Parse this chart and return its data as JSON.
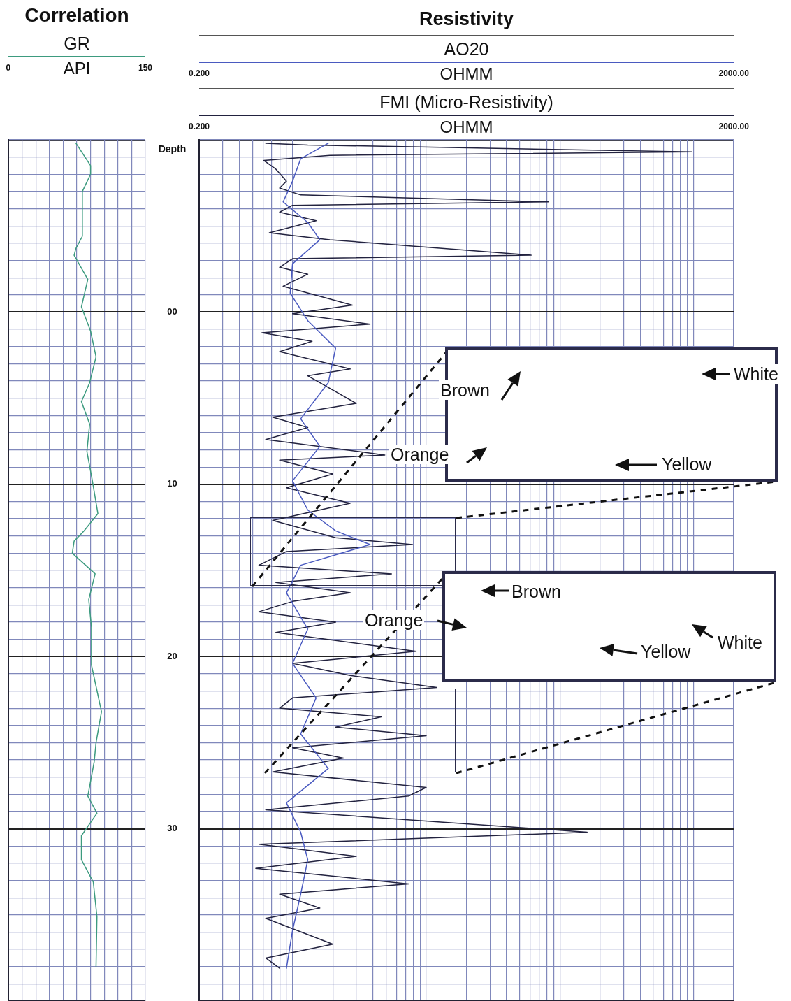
{
  "chart_data": [
    {
      "type": "line",
      "title": "Correlation",
      "xlabel": "API",
      "legend": "top",
      "grid": true,
      "tick_labels": "x",
      "xlim": [
        0,
        150
      ],
      "xticks": [
        0,
        {
          "value": 15,
          "label": null
        },
        {
          "value": 30,
          "label": null
        },
        {
          "value": 45,
          "label": null
        },
        {
          "value": 60,
          "label": null
        },
        {
          "value": 75,
          "label": null
        },
        {
          "value": 90,
          "label": null
        },
        {
          "value": 105,
          "label": null
        },
        {
          "value": 120,
          "label": null
        },
        {
          "value": 135,
          "label": null
        },
        150
      ],
      "ylim": [
        40,
        -10
      ],
      "yticks": [
        {
          "value": -10,
          "label": null
        },
        {
          "value": -9,
          "label": null
        },
        {
          "value": -8,
          "label": null
        },
        {
          "value": -7,
          "label": null
        },
        {
          "value": -6,
          "label": null
        },
        {
          "value": -5,
          "label": null
        },
        {
          "value": -4,
          "label": null
        },
        {
          "value": -3,
          "label": null
        },
        {
          "value": -2,
          "label": null
        },
        {
          "value": -1,
          "label": null
        },
        0,
        {
          "value": 1,
          "label": null
        },
        {
          "value": 2,
          "label": null
        },
        {
          "value": 3,
          "label": null
        },
        {
          "value": 4,
          "label": null
        },
        {
          "value": 5,
          "label": null
        },
        {
          "value": 6,
          "label": null
        },
        {
          "value": 7,
          "label": null
        },
        {
          "value": 8,
          "label": null
        },
        {
          "value": 9,
          "label": null
        },
        10,
        {
          "value": 11,
          "label": null
        },
        {
          "value": 12,
          "label": null
        },
        {
          "value": 13,
          "label": null
        },
        {
          "value": 14,
          "label": null
        },
        {
          "value": 15,
          "label": null
        },
        {
          "value": 16,
          "label": null
        },
        {
          "value": 17,
          "label": null
        },
        {
          "value": 18,
          "label": null
        },
        {
          "value": 19,
          "label": null
        },
        20,
        {
          "value": 21,
          "label": null
        },
        {
          "value": 22,
          "label": null
        },
        {
          "value": 23,
          "label": null
        },
        {
          "value": 24,
          "label": null
        },
        {
          "value": 25,
          "label": null
        },
        {
          "value": 26,
          "label": null
        },
        {
          "value": 27,
          "label": null
        },
        {
          "value": 28,
          "label": null
        },
        {
          "value": 29,
          "label": null
        },
        30,
        {
          "value": 31,
          "label": null
        },
        {
          "value": 32,
          "label": null
        },
        {
          "value": 33,
          "label": null
        },
        {
          "value": 34,
          "label": null
        },
        {
          "value": 35,
          "label": null
        },
        {
          "value": 36,
          "label": null
        },
        {
          "value": 37,
          "label": null
        },
        {
          "value": 38,
          "label": null
        },
        {
          "value": 39,
          "label": null
        },
        {
          "value": 40,
          "label": null
        }
      ],
      "series": [
        {
          "name": "GR",
          "color": "#3d9b7f",
          "x": [
            74,
            90,
            90,
            81,
            81,
            74,
            72,
            87,
            80,
            90,
            96,
            89,
            80,
            89,
            86,
            92,
            98,
            83,
            72,
            70,
            95,
            88,
            91,
            91,
            102,
            96,
            94,
            87,
            97,
            80,
            80,
            93,
            97,
            96
          ],
          "values": [
            -9.8,
            -8.5,
            -8.0,
            -7.0,
            -4.4,
            -3.7,
            -3.3,
            -1.9,
            -0.3,
            1.1,
            2.6,
            4.1,
            5.2,
            6.5,
            8.1,
            9.8,
            11.7,
            12.7,
            13.3,
            14.0,
            15.2,
            16.7,
            18.3,
            20.5,
            23.2,
            25,
            26.1,
            28.1,
            29.1,
            30.4,
            31.8,
            33.1,
            35.1,
            38.0
          ]
        }
      ]
    },
    {
      "type": "line",
      "title": "Resistivity",
      "xlabel": "OHMM",
      "x2label": "OHMM",
      "ylabel": "Depth",
      "legend": "top",
      "grid": true,
      "log": "x",
      "xlim": [
        0.2,
        2000
      ],
      "x2lim": [
        0.2,
        2000
      ],
      "xticks": [
        {
          "value": 0.2,
          "label": "0.200"
        },
        {
          "value": 0.3,
          "label": null
        },
        {
          "value": 0.4,
          "label": null
        },
        {
          "value": 0.5,
          "label": null
        },
        {
          "value": 0.6,
          "label": null
        },
        {
          "value": 0.7,
          "label": null
        },
        {
          "value": 0.8,
          "label": null
        },
        {
          "value": 0.9,
          "label": null
        },
        {
          "value": 1,
          "label": null
        },
        {
          "value": 2,
          "label": null
        },
        {
          "value": 3,
          "label": null
        },
        {
          "value": 4,
          "label": null
        },
        {
          "value": 5,
          "label": null
        },
        {
          "value": 6,
          "label": null
        },
        {
          "value": 7,
          "label": null
        },
        {
          "value": 8,
          "label": null
        },
        {
          "value": 9,
          "label": null
        },
        {
          "value": 10,
          "label": null
        },
        {
          "value": 20,
          "label": null
        },
        {
          "value": 30,
          "label": null
        },
        {
          "value": 40,
          "label": null
        },
        {
          "value": 50,
          "label": null
        },
        {
          "value": 60,
          "label": null
        },
        {
          "value": 70,
          "label": null
        },
        {
          "value": 80,
          "label": null
        },
        {
          "value": 90,
          "label": null
        },
        {
          "value": 100,
          "label": null
        },
        {
          "value": 200,
          "label": null
        },
        {
          "value": 300,
          "label": null
        },
        {
          "value": 400,
          "label": null
        },
        {
          "value": 500,
          "label": null
        },
        {
          "value": 600,
          "label": null
        },
        {
          "value": 700,
          "label": null
        },
        {
          "value": 800,
          "label": null
        },
        {
          "value": 900,
          "label": null
        },
        {
          "value": 1000,
          "label": null
        },
        {
          "value": 2000,
          "label": "2000.00"
        }
      ],
      "x2ticks": [
        {
          "value": 0.2,
          "label": "0.200"
        },
        {
          "value": 2000,
          "label": "2000.00"
        }
      ],
      "ylim": [
        40,
        -10
      ],
      "yticks": [
        {
          "value": -10,
          "label": null
        },
        {
          "value": -9,
          "label": null
        },
        {
          "value": -8,
          "label": null
        },
        {
          "value": -7,
          "label": null
        },
        {
          "value": -6,
          "label": null
        },
        {
          "value": -5,
          "label": null
        },
        {
          "value": -4,
          "label": null
        },
        {
          "value": -3,
          "label": null
        },
        {
          "value": -2,
          "label": null
        },
        {
          "value": -1,
          "label": null
        },
        {
          "value": 0,
          "label": "00"
        },
        {
          "value": 1,
          "label": null
        },
        {
          "value": 2,
          "label": null
        },
        {
          "value": 3,
          "label": null
        },
        {
          "value": 4,
          "label": null
        },
        {
          "value": 5,
          "label": null
        },
        {
          "value": 6,
          "label": null
        },
        {
          "value": 7,
          "label": null
        },
        {
          "value": 8,
          "label": null
        },
        {
          "value": 9,
          "label": null
        },
        10,
        {
          "value": 11,
          "label": null
        },
        {
          "value": 12,
          "label": null
        },
        {
          "value": 13,
          "label": null
        },
        {
          "value": 14,
          "label": null
        },
        {
          "value": 15,
          "label": null
        },
        {
          "value": 16,
          "label": null
        },
        {
          "value": 17,
          "label": null
        },
        {
          "value": 18,
          "label": null
        },
        {
          "value": 19,
          "label": null
        },
        20,
        {
          "value": 21,
          "label": null
        },
        {
          "value": 22,
          "label": null
        },
        {
          "value": 23,
          "label": null
        },
        {
          "value": 24,
          "label": null
        },
        {
          "value": 25,
          "label": null
        },
        {
          "value": 26,
          "label": null
        },
        {
          "value": 27,
          "label": null
        },
        {
          "value": 28,
          "label": null
        },
        {
          "value": 29,
          "label": null
        },
        30,
        {
          "value": 31,
          "label": null
        },
        {
          "value": 32,
          "label": null
        },
        {
          "value": 33,
          "label": null
        },
        {
          "value": 34,
          "label": null
        },
        {
          "value": 35,
          "label": null
        },
        {
          "value": 36,
          "label": null
        },
        {
          "value": 37,
          "label": null
        },
        {
          "value": 38,
          "label": null
        },
        {
          "value": 39,
          "label": null
        },
        {
          "value": 40,
          "label": null
        }
      ],
      "annotations": [
        "Brown",
        "White",
        "Orange",
        "Yellow",
        "Brown",
        "Orange",
        "Yellow",
        "White"
      ],
      "series": [
        {
          "name": "AO20",
          "color": "#4a5ac0",
          "x": [
            1.85,
            1.15,
            1.0,
            0.85,
            1.3,
            1.6,
            1.0,
            0.96,
            1.3,
            2.1,
            1.85,
            1.15,
            1.6,
            1.0,
            1.3,
            2.1,
            3.8,
            1.15,
            0.9,
            1.3,
            1.0,
            1.5,
            1.15,
            1.85,
            0.9,
            1.15,
            1.3,
            1.15,
            1.0,
            0.9
          ],
          "values": [
            -9.8,
            -8.9,
            -7.6,
            -6.4,
            -5.2,
            -4.2,
            -2.8,
            -1.1,
            0.5,
            2.1,
            4.1,
            6.2,
            7.8,
            9.8,
            11.5,
            12.7,
            13.5,
            14.7,
            16.3,
            18.4,
            20.4,
            22.4,
            24.5,
            26.5,
            28.5,
            30.2,
            31.8,
            33.8,
            35.9,
            38.1
          ]
        },
        {
          "name": "FMI (Micro-Resistivity)",
          "color": "#22223f",
          "x": [
            0.63,
            1.3,
            970,
            1.9,
            0.61,
            0.75,
            0.9,
            0.8,
            1.15,
            82,
            1.0,
            0.8,
            1.5,
            0.67,
            1.9,
            61,
            1.0,
            0.8,
            1.3,
            0.85,
            2.8,
            1.0,
            3.8,
            0.59,
            1.4,
            0.8,
            2.7,
            1.3,
            3.0,
            0.71,
            1.3,
            0.63,
            4.9,
            0.8,
            2.0,
            0.9,
            2.7,
            0.71,
            2.1,
            7.9,
            0.9,
            0.56,
            5.5,
            0.75,
            2.7,
            1.0,
            0.56,
            2.1,
            0.75,
            8.4,
            1.0,
            2.7,
            12,
            1.0,
            0.8,
            4.6,
            2.1,
            10,
            1.0,
            2.4,
            0.71,
            10,
            7.4,
            0.63,
            160,
            0.56,
            3.0,
            0.53,
            7.4,
            0.8,
            1.6,
            0.63,
            2.0,
            0.63,
            0.8
          ],
          "values": [
            -9.8,
            -9.7,
            -9.3,
            -9.1,
            -8.8,
            -8.3,
            -7.6,
            -7.2,
            -6.8,
            -6.4,
            -6.2,
            -5.8,
            -5.3,
            -4.6,
            -4.2,
            -3.3,
            -3.1,
            -2.6,
            -2.2,
            -1.5,
            -0.4,
            0.1,
            0.7,
            1.2,
            1.7,
            2.3,
            3.3,
            3.7,
            5.3,
            6.1,
            6.7,
            7.4,
            8.3,
            8.6,
            9.4,
            10.2,
            11.1,
            12.1,
            13.1,
            13.5,
            13.9,
            14.7,
            15.2,
            15.7,
            16.3,
            16.8,
            17.4,
            18.0,
            18.6,
            19.7,
            20.4,
            21.1,
            21.8,
            22.4,
            23.0,
            23.5,
            24.1,
            24.6,
            25.3,
            25.9,
            26.7,
            27.6,
            28.1,
            28.9,
            30.2,
            30.9,
            31.6,
            32.3,
            33.2,
            33.8,
            34.6,
            35.2,
            36.7,
            37.5,
            38.1
          ]
        }
      ]
    }
  ]
}
